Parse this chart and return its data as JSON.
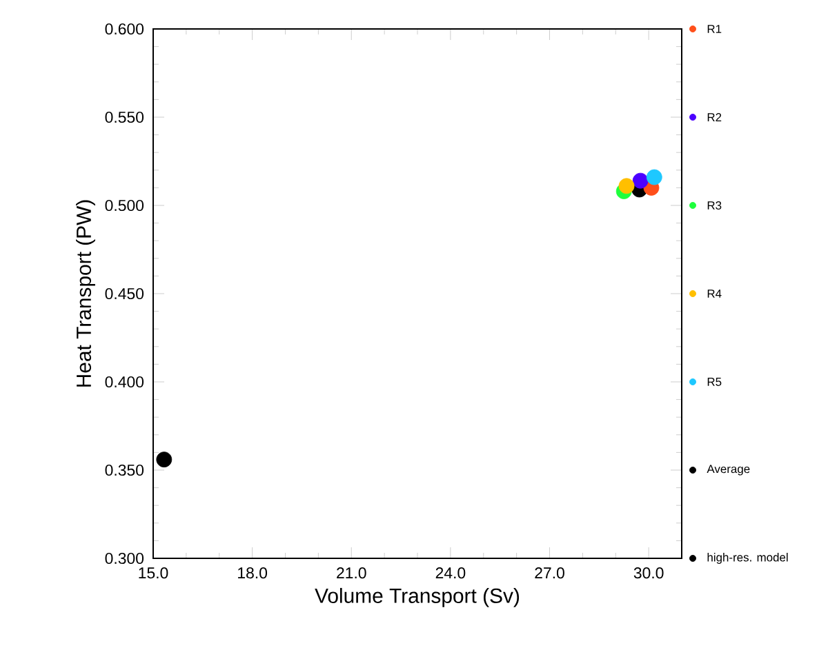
{
  "chart_data": {
    "type": "scatter",
    "xlabel": "Volume Transport (Sv)",
    "ylabel": "Heat Transport (PW)",
    "xlim": [
      15,
      31
    ],
    "ylim": [
      0.3,
      0.6
    ],
    "xticks": [
      {
        "value": 15,
        "label": "15.0"
      },
      {
        "value": 18,
        "label": "18.0"
      },
      {
        "value": 21,
        "label": "21.0"
      },
      {
        "value": 24,
        "label": "24.0"
      },
      {
        "value": 27,
        "label": "27.0"
      },
      {
        "value": 30,
        "label": "30.0"
      }
    ],
    "yticks": [
      {
        "value": 0.3,
        "label": "0.300"
      },
      {
        "value": 0.35,
        "label": "0.350"
      },
      {
        "value": 0.4,
        "label": "0.400"
      },
      {
        "value": 0.45,
        "label": "0.450"
      },
      {
        "value": 0.5,
        "label": "0.500"
      },
      {
        "value": 0.55,
        "label": "0.550"
      },
      {
        "value": 0.6,
        "label": "0.600"
      }
    ],
    "marker": "circle",
    "legend": "right",
    "grid": false,
    "series": [
      {
        "name": "R1",
        "color": "#ff4f1a",
        "x": [
          30.08
        ],
        "values": [
          0.51
        ]
      },
      {
        "name": "R2",
        "color": "#4b00ff",
        "x": [
          29.75
        ],
        "values": [
          0.514
        ]
      },
      {
        "name": "R3",
        "color": "#1eff3c",
        "x": [
          29.25
        ],
        "values": [
          0.508
        ]
      },
      {
        "name": "R4",
        "color": "#ffbf00",
        "x": [
          29.33
        ],
        "values": [
          0.511
        ]
      },
      {
        "name": "R5",
        "color": "#1ec8ff",
        "x": [
          30.17
        ],
        "values": [
          0.516
        ]
      },
      {
        "name": "Average",
        "color": "#000000",
        "x": [
          29.72
        ],
        "values": [
          0.509
        ]
      },
      {
        "name": "high-res. model",
        "color": "#000000",
        "x": [
          15.33
        ],
        "values": [
          0.356
        ]
      }
    ]
  }
}
